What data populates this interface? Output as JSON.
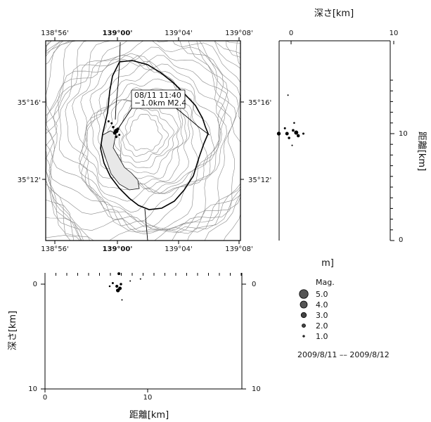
{
  "map": {
    "lon_ticks": [
      "138°56'",
      "139°00'",
      "139°04'",
      "139°08'"
    ],
    "lat_ticks": [
      "35°16'",
      "35°12'"
    ],
    "annotation_line1": "08/11 11:40",
    "annotation_line2": "−1.0km M2.4"
  },
  "side_panel": {
    "title": "深さ[km]",
    "x_ticks": [
      "0",
      "10"
    ],
    "y_label": "距離[km]",
    "y_ticks": [
      "10",
      "0"
    ],
    "bottom_text": "m]"
  },
  "bottom_panel": {
    "y_label": "深さ[km]",
    "y_ticks": [
      "0",
      "10"
    ],
    "x_ticks": [
      "0",
      "10"
    ],
    "x_label": "距離[km]"
  },
  "legend": {
    "title": "Mag.",
    "items": [
      "5.0",
      "4.0",
      "3.0",
      "2.0",
      "1.0"
    ],
    "magnitudes": [
      5,
      4,
      3,
      2,
      1
    ],
    "date_range": "2009/8/11 –– 2009/8/12"
  },
  "colors": {
    "event": "#000000",
    "axis": "#000000",
    "contour": "#8a8a8a",
    "lake": "#e8e8e8"
  },
  "chart_data": [
    {
      "type": "scatter",
      "panel": "map",
      "xlabel": "",
      "ylabel": "",
      "xlim": [
        "138°55.5'",
        "139°08'"
      ],
      "ylim": [
        "35°08.5'",
        "35°19.5'"
      ],
      "points": [
        {
          "lon": "139°00.0'",
          "lat": "35°14.5'",
          "mag": 2.4
        },
        {
          "lon": "138°59.9'",
          "lat": "35°14.4'",
          "mag": 1.8
        },
        {
          "lon": "139°00.1'",
          "lat": "35°14.6'",
          "mag": 1.5
        },
        {
          "lon": "138°59.8'",
          "lat": "35°14.7'",
          "mag": 1.2
        },
        {
          "lon": "139°00.0'",
          "lat": "35°14.2'",
          "mag": 1.3
        },
        {
          "lon": "138°59.7'",
          "lat": "35°14.9'",
          "mag": 1.0
        },
        {
          "lon": "139°00.2'",
          "lat": "35°14.3'",
          "mag": 1.0
        },
        {
          "lon": "138°59.5'",
          "lat": "35°15.0'",
          "mag": 1.0
        }
      ]
    },
    {
      "type": "scatter",
      "panel": "depth-vs-distance (side)",
      "title": "深さ[km]",
      "ylabel": "距離[km]",
      "xlim": [
        -1.5,
        10
      ],
      "ylim": [
        0,
        15
      ],
      "points": [
        {
          "depth": -1.2,
          "dist": 10.0,
          "mag": 2.0
        },
        {
          "depth": -0.4,
          "dist": 10.0,
          "mag": 1.8
        },
        {
          "depth": 0.5,
          "dist": 10.1,
          "mag": 2.2
        },
        {
          "depth": 0.7,
          "dist": 9.8,
          "mag": 1.6
        },
        {
          "depth": -0.2,
          "dist": 9.6,
          "mag": 1.2
        },
        {
          "depth": 0.2,
          "dist": 10.3,
          "mag": 1.3
        },
        {
          "depth": 1.2,
          "dist": 10.0,
          "mag": 1.0
        },
        {
          "depth": -0.6,
          "dist": 10.5,
          "mag": 1.0
        },
        {
          "depth": 0.3,
          "dist": 11.0,
          "mag": 0.8
        },
        {
          "depth": -0.3,
          "dist": 13.6,
          "mag": 0.6
        },
        {
          "depth": 0.1,
          "dist": 8.9,
          "mag": 0.6
        }
      ]
    },
    {
      "type": "scatter",
      "panel": "distance-vs-depth (bottom)",
      "xlabel": "距離[km]",
      "ylabel": "深さ[km]",
      "xlim": [
        0,
        25
      ],
      "ylim": [
        -1.5,
        10
      ],
      "points": [
        {
          "dist": 7.2,
          "depth": -1.0,
          "mag": 1.4
        },
        {
          "dist": 7.0,
          "depth": 0.2,
          "mag": 1.5
        },
        {
          "dist": 7.3,
          "depth": 0.4,
          "mag": 1.8
        },
        {
          "dist": 7.1,
          "depth": 0.6,
          "mag": 2.0
        },
        {
          "dist": 7.4,
          "depth": 0.0,
          "mag": 1.2
        },
        {
          "dist": 6.6,
          "depth": -0.1,
          "mag": 1.0
        },
        {
          "dist": 6.3,
          "depth": 0.2,
          "mag": 0.8
        },
        {
          "dist": 8.3,
          "depth": -0.3,
          "mag": 0.6
        },
        {
          "dist": 7.5,
          "depth": 1.5,
          "mag": 0.6
        },
        {
          "dist": 9.3,
          "depth": -0.5,
          "mag": 0.5
        }
      ]
    }
  ]
}
